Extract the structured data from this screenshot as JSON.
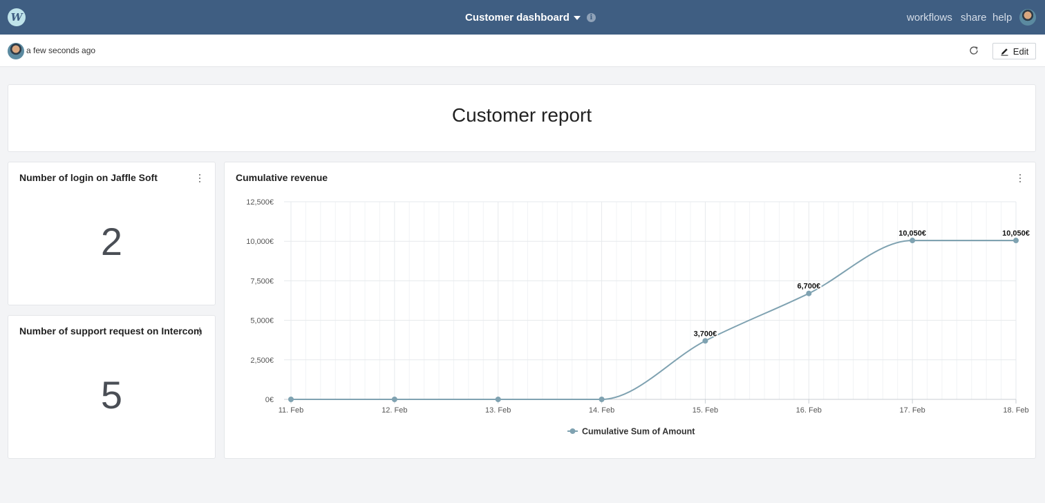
{
  "topbar": {
    "dashboard_title": "Customer dashboard",
    "nav": {
      "workflows": "workflows",
      "share": "share",
      "help": "help"
    },
    "logo_letter": "W"
  },
  "subbar": {
    "updated": "a few seconds ago",
    "edit_label": "Edit"
  },
  "report": {
    "title": "Customer report"
  },
  "kpis": [
    {
      "title": "Number of login on Jaffle Soft",
      "value": "2"
    },
    {
      "title": "Number of support request on Intercom",
      "value": "5"
    }
  ],
  "revenue_card": {
    "title": "Cumulative revenue"
  },
  "colors": {
    "topbar": "#3f5e82",
    "series": "#7fa2b1",
    "page_bg": "#f3f4f6"
  },
  "chart_data": {
    "type": "line",
    "title": "Cumulative revenue",
    "x": [
      "11. Feb",
      "12. Feb",
      "13. Feb",
      "14. Feb",
      "15. Feb",
      "16. Feb",
      "17. Feb",
      "18. Feb"
    ],
    "series": [
      {
        "name": "Cumulative Sum of Amount",
        "values": [
          0,
          0,
          0,
          0,
          3700,
          6700,
          10050,
          10050
        ]
      }
    ],
    "data_labels": [
      "",
      "",
      "",
      "",
      "3,700€",
      "6,700€",
      "10,050€",
      "10,050€"
    ],
    "y_ticks": [
      "0€",
      "2,500€",
      "5,000€",
      "7,500€",
      "10,000€",
      "12,500€"
    ],
    "ylim": [
      0,
      12500
    ],
    "grid": true,
    "legend": "bottom-center"
  }
}
